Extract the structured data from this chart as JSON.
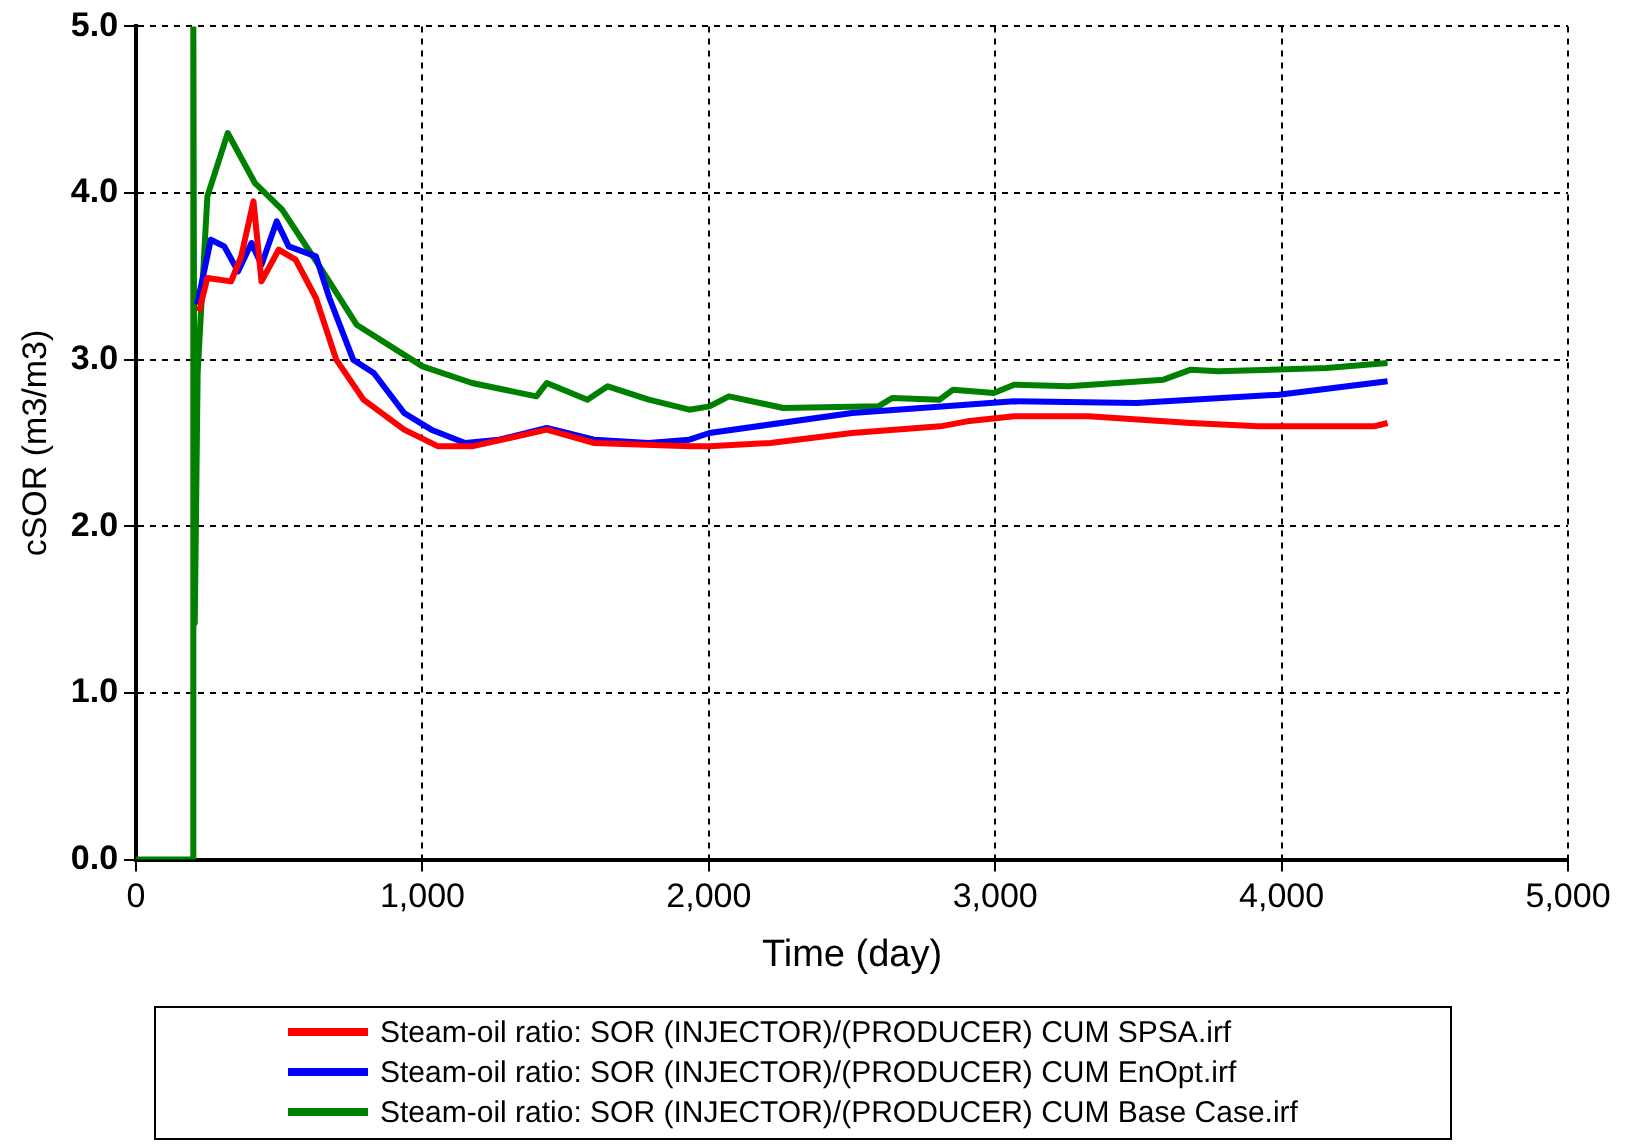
{
  "chart_data": {
    "type": "line",
    "xlabel": "Time (day)",
    "ylabel": "cSOR (m3/m3)",
    "xlim": [
      0,
      5000
    ],
    "ylim": [
      0,
      5
    ],
    "xticks": [
      0,
      {
        "value": 1000,
        "label": "1,000"
      },
      {
        "value": 2000,
        "label": "2,000"
      },
      {
        "value": 3000,
        "label": "3,000"
      },
      {
        "value": 4000,
        "label": "4,000"
      },
      {
        "value": 5000,
        "label": "5,000"
      }
    ],
    "yticks": [
      {
        "value": 0,
        "label": "0.0"
      },
      {
        "value": 1,
        "label": "1.0"
      },
      {
        "value": 2,
        "label": "2.0"
      },
      {
        "value": 3,
        "label": "3.0"
      },
      {
        "value": 4,
        "label": "4.0"
      },
      {
        "value": 5,
        "label": "5.0"
      }
    ],
    "grid": true,
    "legend": "bottom",
    "marker": "none",
    "line_style": "solid",
    "series": [
      {
        "name": "Steam-oil ratio: SOR (INJECTOR)/(PRODUCER) CUM SPSA.irf",
        "color": "#ff0000",
        "x": [
          220,
          249,
          332,
          367,
          410,
          438,
          498,
          557,
          628,
          699,
          794,
          936,
          1055,
          1173,
          1434,
          1600,
          1932,
          2002,
          2215,
          2500,
          2808,
          2902,
          3066,
          3327,
          3682,
          3919,
          4322,
          4370
        ],
        "values": [
          3.29,
          3.49,
          3.47,
          3.62,
          3.95,
          3.47,
          3.66,
          3.6,
          3.37,
          3.0,
          2.76,
          2.58,
          2.48,
          2.48,
          2.58,
          2.5,
          2.48,
          2.48,
          2.5,
          2.56,
          2.6,
          2.63,
          2.66,
          2.66,
          2.62,
          2.6,
          2.6,
          2.62
        ]
      },
      {
        "name": "Steam-oil ratio: SOR (INJECTOR)/(PRODUCER) CUM EnOpt.irf",
        "color": "#0000ff",
        "x": [
          213,
          261,
          308,
          356,
          403,
          438,
          491,
          533,
          628,
          675,
          758,
          830,
          936,
          1031,
          1149,
          1268,
          1434,
          1600,
          1789,
          1932,
          2002,
          2500,
          3066,
          3493,
          3990,
          4370
        ],
        "values": [
          3.33,
          3.72,
          3.68,
          3.53,
          3.7,
          3.57,
          3.83,
          3.68,
          3.62,
          3.37,
          3.0,
          2.92,
          2.68,
          2.58,
          2.5,
          2.52,
          2.59,
          2.52,
          2.5,
          2.52,
          2.56,
          2.68,
          2.75,
          2.74,
          2.79,
          2.87
        ]
      },
      {
        "name": "Steam-oil ratio: SOR (INJECTOR)/(PRODUCER) CUM Base Case.irf",
        "color": "#008000",
        "x": [
          0,
          200,
          200,
          205,
          215,
          249,
          320,
          415,
          510,
          652,
          770,
          1000,
          1173,
          1398,
          1434,
          1576,
          1647,
          1790,
          1932,
          2002,
          2070,
          2260,
          2592,
          2640,
          2806,
          2853,
          2995,
          3066,
          3256,
          3588,
          3683,
          3778,
          4157,
          4370
        ],
        "values": [
          0,
          0,
          5.0,
          1.42,
          2.92,
          3.98,
          4.36,
          4.06,
          3.9,
          3.53,
          3.21,
          2.96,
          2.86,
          2.78,
          2.86,
          2.76,
          2.84,
          2.76,
          2.7,
          2.72,
          2.78,
          2.71,
          2.72,
          2.77,
          2.76,
          2.82,
          2.8,
          2.85,
          2.84,
          2.88,
          2.94,
          2.93,
          2.95,
          2.98
        ]
      }
    ]
  }
}
